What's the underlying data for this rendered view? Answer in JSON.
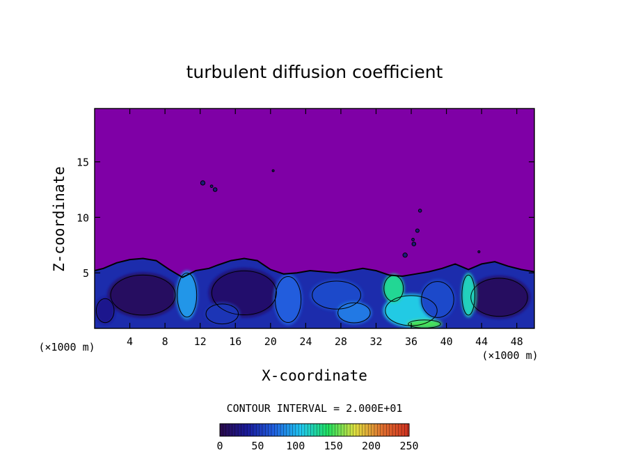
{
  "chart_data": {
    "type": "heatmap",
    "title": "turbulent diffusion coefficient",
    "xlabel": "X-coordinate",
    "ylabel": "Z-coordinate",
    "x_unit_left": "(×1000 m)",
    "x_unit_right": "(×1000 m)",
    "xlim": [
      0,
      50
    ],
    "ylim": [
      0,
      19.8
    ],
    "x_ticks": [
      4,
      8,
      12,
      16,
      20,
      24,
      28,
      32,
      36,
      40,
      44,
      48
    ],
    "y_ticks": [
      5,
      10,
      15
    ],
    "background_value": 0,
    "contour_interval_text": "CONTOUR INTERVAL = 2.000E+01",
    "colorbar": {
      "range": [
        0,
        250
      ],
      "ticks": [
        0,
        50,
        100,
        150,
        200,
        250
      ],
      "colors": [
        "#2a0a4a",
        "#1a1a9a",
        "#2060e0",
        "#20c8f0",
        "#20e060",
        "#e0e040",
        "#e07030",
        "#d03020"
      ]
    },
    "boundary_layer": {
      "top_profile": [
        [
          0,
          5.2
        ],
        [
          1,
          5.4
        ],
        [
          2.5,
          5.9
        ],
        [
          4,
          6.2
        ],
        [
          5.5,
          6.3
        ],
        [
          7,
          6.1
        ],
        [
          8.5,
          5.3
        ],
        [
          10,
          4.6
        ],
        [
          11.5,
          5.2
        ],
        [
          13,
          5.4
        ],
        [
          14,
          5.7
        ],
        [
          15.5,
          6.1
        ],
        [
          17,
          6.3
        ],
        [
          18.5,
          6.1
        ],
        [
          20,
          5.3
        ],
        [
          21.5,
          4.9
        ],
        [
          23,
          5.0
        ],
        [
          24.5,
          5.2
        ],
        [
          26,
          5.1
        ],
        [
          27.5,
          5.0
        ],
        [
          29,
          5.2
        ],
        [
          30.5,
          5.4
        ],
        [
          32,
          5.2
        ],
        [
          33.5,
          4.8
        ],
        [
          35,
          4.7
        ],
        [
          36.5,
          4.9
        ],
        [
          38,
          5.1
        ],
        [
          39.5,
          5.4
        ],
        [
          41,
          5.8
        ],
        [
          42.5,
          5.3
        ],
        [
          44,
          5.8
        ],
        [
          45.5,
          6.0
        ],
        [
          47,
          5.6
        ],
        [
          48.5,
          5.3
        ],
        [
          50,
          5.1
        ]
      ],
      "cells": [
        {
          "x": 5.5,
          "z": 3.0,
          "rx": 4.0,
          "rz": 2.0,
          "value": 10
        },
        {
          "x": 17.0,
          "z": 3.2,
          "rx": 4.0,
          "rz": 2.2,
          "value": 15
        },
        {
          "x": 46.0,
          "z": 2.8,
          "rx": 3.5,
          "rz": 1.9,
          "value": 10
        },
        {
          "x": 1.2,
          "z": 1.6,
          "rx": 1.1,
          "rz": 1.2,
          "value": 30
        },
        {
          "x": 27.5,
          "z": 3.0,
          "rx": 3.0,
          "rz": 1.4,
          "value": 60
        },
        {
          "x": 10.5,
          "z": 3.0,
          "rx": 1.2,
          "rz": 2.2,
          "value": 90
        },
        {
          "x": 22.0,
          "z": 2.6,
          "rx": 1.6,
          "rz": 2.3,
          "value": 70
        },
        {
          "x": 36.0,
          "z": 1.6,
          "rx": 3.2,
          "rz": 1.5,
          "value": 110
        },
        {
          "x": 39.0,
          "z": 2.6,
          "rx": 2.0,
          "rz": 1.8,
          "value": 60
        },
        {
          "x": 34.0,
          "z": 3.6,
          "rx": 1.2,
          "rz": 1.3,
          "value": 130
        },
        {
          "x": 42.5,
          "z": 3.0,
          "rx": 0.8,
          "rz": 2.0,
          "value": 120
        },
        {
          "x": 29.5,
          "z": 1.4,
          "rx": 2.0,
          "rz": 1.0,
          "value": 80
        },
        {
          "x": 14.5,
          "z": 1.3,
          "rx": 2.0,
          "rz": 1.0,
          "value": 50
        },
        {
          "x": 37.5,
          "z": 0.4,
          "rx": 2.0,
          "rz": 0.4,
          "value": 150
        }
      ],
      "blobs": [
        {
          "x": 12.3,
          "z": 13.1,
          "r": 0.25
        },
        {
          "x": 13.7,
          "z": 12.5,
          "r": 0.22
        },
        {
          "x": 13.3,
          "z": 12.8,
          "r": 0.15
        },
        {
          "x": 37.0,
          "z": 10.6,
          "r": 0.18
        },
        {
          "x": 36.7,
          "z": 8.8,
          "r": 0.2
        },
        {
          "x": 36.3,
          "z": 7.6,
          "r": 0.22
        },
        {
          "x": 35.3,
          "z": 6.6,
          "r": 0.25
        },
        {
          "x": 36.2,
          "z": 8.0,
          "r": 0.15
        },
        {
          "x": 20.3,
          "z": 14.2,
          "r": 0.08
        },
        {
          "x": 43.7,
          "z": 6.9,
          "r": 0.12
        }
      ]
    }
  }
}
